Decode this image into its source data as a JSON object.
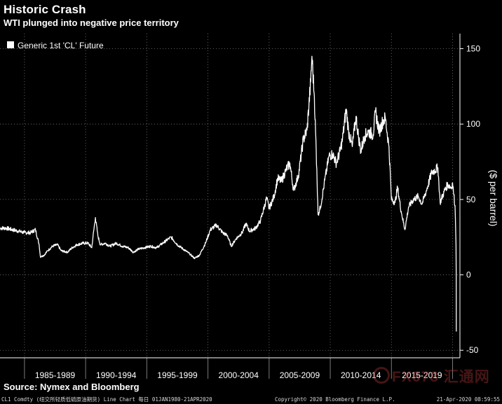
{
  "header": {
    "title": "Historic Crash",
    "subtitle": "WTI plunged into negative price territory"
  },
  "footer": {
    "source": "Source: Nymex and Bloomberg",
    "left_text": "CL1 Comdty (纽交所轻质低硫原油期货) Line Chart  每日 01JAN1980-21APR2020",
    "mid_text": "Copyright© 2020 Bloomberg Finance L.P.",
    "right_text": "21-Apr-2020 08:59:55",
    "watermark": "FX678 汇通网"
  },
  "colors": {
    "background": "#000000",
    "line": "#ffffff",
    "grid": "#7a7a7a"
  },
  "chart_data": {
    "type": "line",
    "title": "Historic Crash",
    "subtitle": "WTI plunged into negative price territory",
    "ylabel": "($ per barrel)",
    "xlabel": "",
    "ylim": [
      -55,
      160
    ],
    "xlim": [
      1983.0,
      2020.6
    ],
    "y_ticks": [
      -50,
      0,
      50,
      100,
      150
    ],
    "x_ticks": [
      "1985-1989",
      "1990-1994",
      "1995-1999",
      "2000-2004",
      "2005-2009",
      "2010-2014",
      "2015-2019"
    ],
    "x_tick_dividers": [
      1985,
      1990,
      1995,
      2000,
      2005,
      2010,
      2015,
      2020
    ],
    "grid": true,
    "legend_position": "top-left",
    "series": [
      {
        "name": "Generic 1st 'CL' Future",
        "x": [
          1983.0,
          1983.5,
          1984.0,
          1984.5,
          1985.0,
          1985.5,
          1985.9,
          1986.2,
          1986.3,
          1986.6,
          1986.9,
          1987.3,
          1987.7,
          1988.0,
          1988.5,
          1988.9,
          1989.3,
          1989.8,
          1990.2,
          1990.5,
          1990.6,
          1990.8,
          1991.0,
          1991.2,
          1991.6,
          1992.0,
          1992.5,
          1993.0,
          1993.5,
          1993.9,
          1994.3,
          1994.8,
          1995.3,
          1995.8,
          1996.3,
          1996.8,
          1997.0,
          1997.5,
          1998.0,
          1998.5,
          1998.9,
          1999.3,
          1999.8,
          2000.2,
          2000.7,
          2001.2,
          2001.6,
          2001.9,
          2002.3,
          2002.8,
          2003.1,
          2003.4,
          2003.9,
          2004.3,
          2004.8,
          2005.0,
          2005.4,
          2005.7,
          2006.0,
          2006.4,
          2006.7,
          2007.0,
          2007.4,
          2007.8,
          2008.1,
          2008.4,
          2008.5,
          2008.7,
          2008.9,
          2009.0,
          2009.2,
          2009.5,
          2009.9,
          2010.2,
          2010.5,
          2010.8,
          2011.0,
          2011.3,
          2011.5,
          2011.8,
          2012.1,
          2012.3,
          2012.5,
          2012.8,
          2013.1,
          2013.5,
          2013.7,
          2014.0,
          2014.3,
          2014.5,
          2014.8,
          2015.0,
          2015.3,
          2015.5,
          2015.8,
          2016.1,
          2016.4,
          2016.8,
          2017.2,
          2017.5,
          2017.9,
          2018.3,
          2018.8,
          2018.98,
          2019.3,
          2019.6,
          2019.9,
          2020.0,
          2020.1,
          2020.2,
          2020.25,
          2020.28,
          2020.295,
          2020.3
        ],
        "values": [
          31,
          31,
          30,
          29,
          28,
          28,
          30,
          20,
          12,
          13,
          16,
          19,
          20,
          16,
          15,
          18,
          20,
          21,
          21,
          18,
          25,
          38,
          26,
          20,
          21,
          19,
          21,
          19,
          18,
          15,
          17,
          18,
          19,
          18,
          21,
          24,
          25,
          20,
          17,
          14,
          11,
          13,
          21,
          30,
          33,
          28,
          26,
          19,
          24,
          28,
          34,
          29,
          31,
          36,
          51,
          44,
          52,
          64,
          62,
          70,
          74,
          56,
          66,
          90,
          96,
          128,
          145,
          118,
          70,
          40,
          45,
          60,
          79,
          80,
          74,
          82,
          90,
          110,
          95,
          85,
          105,
          92,
          82,
          92,
          95,
          93,
          108,
          95,
          102,
          104,
          85,
          50,
          48,
          58,
          42,
          30,
          45,
          50,
          52,
          47,
          57,
          68,
          71,
          48,
          55,
          60,
          58,
          61,
          53,
          46,
          30,
          20,
          0,
          -37.6
        ]
      }
    ]
  }
}
